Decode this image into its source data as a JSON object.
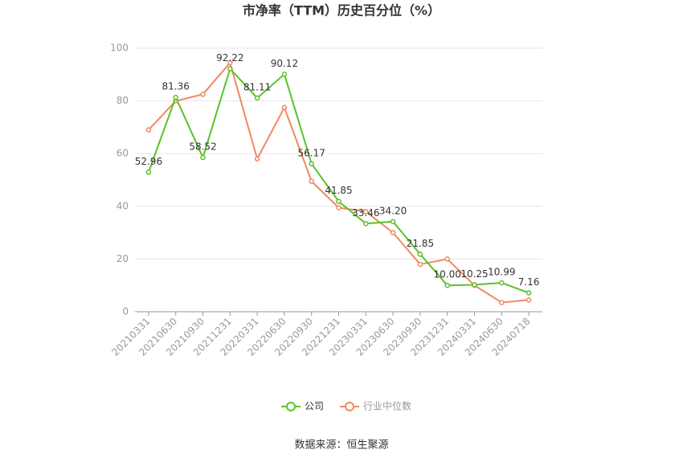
{
  "chart_data": {
    "type": "line",
    "title": "市净率（TTM）历史百分位（%）",
    "categories": [
      "20210331",
      "20210630",
      "20210930",
      "20211231",
      "20220331",
      "20220630",
      "20220930",
      "20221231",
      "20230331",
      "20230630",
      "20230930",
      "20231231",
      "20240331",
      "20240630",
      "20240718"
    ],
    "series": [
      {
        "name": "公司",
        "color": "#5ac22b",
        "values": [
          52.96,
          81.36,
          58.52,
          92.22,
          81.11,
          90.12,
          56.17,
          41.85,
          33.46,
          34.2,
          21.85,
          10,
          10.25,
          10.99,
          7.16
        ],
        "value_labels": [
          "52.96",
          "81.36",
          "58.52",
          "92.22",
          "81.11",
          "90.12",
          "56.17",
          "41.85",
          "33.46",
          "34.20",
          "21.85",
          "10.00",
          "10.25",
          "10.99",
          "7.16"
        ]
      },
      {
        "name": "行业中位数",
        "color": "#f0895f",
        "values": [
          69,
          80,
          82.5,
          94.5,
          58,
          77.5,
          49.5,
          39.5,
          38,
          30,
          18,
          20,
          10,
          3.5,
          4.5
        ]
      }
    ],
    "ylim": [
      0,
      100
    ],
    "yticks": [
      0,
      20,
      40,
      60,
      80,
      100
    ],
    "grid": true,
    "source": "数据来源：恒生聚源"
  }
}
